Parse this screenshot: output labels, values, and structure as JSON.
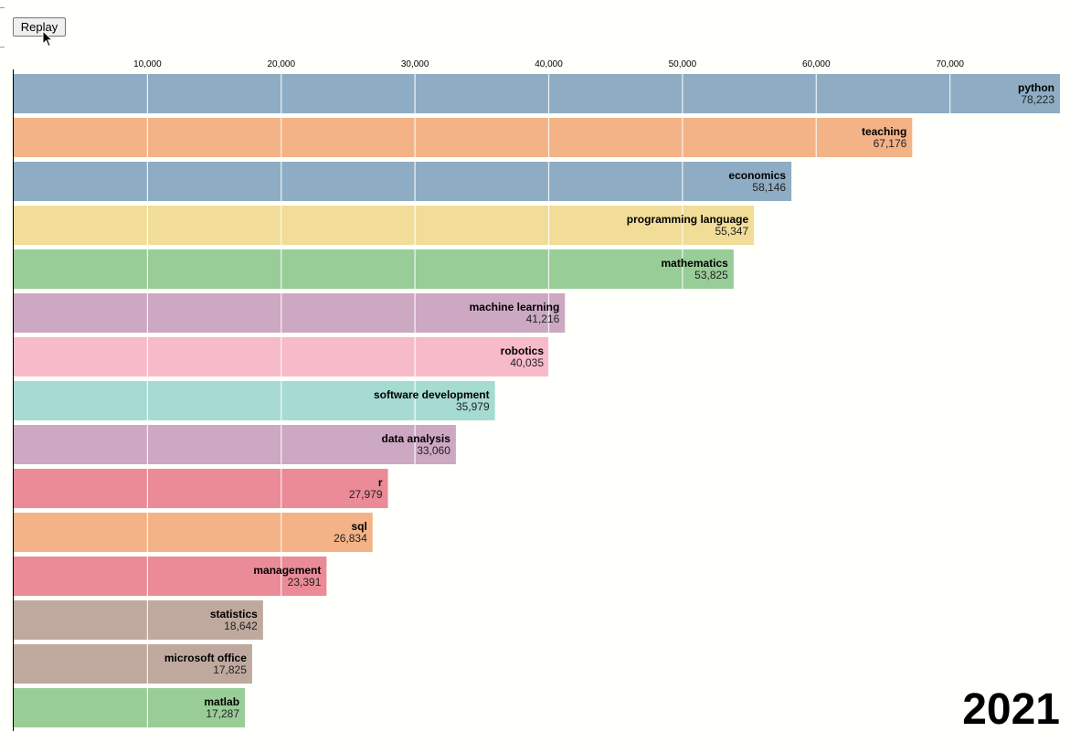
{
  "controls": {
    "replay_label": "Replay"
  },
  "chart_data": {
    "type": "bar",
    "orientation": "horizontal",
    "year": "2021",
    "xlim": [
      0,
      78223
    ],
    "ticks": [
      10000,
      20000,
      30000,
      40000,
      50000,
      60000,
      70000
    ],
    "tick_labels": [
      "10,000",
      "20,000",
      "30,000",
      "40,000",
      "50,000",
      "60,000",
      "70,000"
    ],
    "grid": true,
    "axis_position": "top",
    "categories": [
      "python",
      "teaching",
      "economics",
      "programming language",
      "mathematics",
      "machine learning",
      "robotics",
      "software development",
      "data analysis",
      "r",
      "sql",
      "management",
      "statistics",
      "microsoft office",
      "matlab"
    ],
    "values": [
      78223,
      67176,
      58146,
      55347,
      53825,
      41216,
      40035,
      35979,
      33060,
      27979,
      26834,
      23391,
      18642,
      17825,
      17287
    ],
    "value_labels": [
      "78,223",
      "67,176",
      "58,146",
      "55,347",
      "53,825",
      "41,216",
      "40,035",
      "35,979",
      "33,060",
      "27,979",
      "26,834",
      "23,391",
      "18,642",
      "17,825",
      "17,287"
    ],
    "colors": [
      "#8eadc4",
      "#f4b387",
      "#8eadc4",
      "#f1dd97",
      "#98cd97",
      "#cda8c2",
      "#f7bac9",
      "#a6dbd2",
      "#cda8c2",
      "#ea8b97",
      "#f4b387",
      "#ea8b97",
      "#bfa99e",
      "#bfa99e",
      "#98cd97"
    ]
  }
}
